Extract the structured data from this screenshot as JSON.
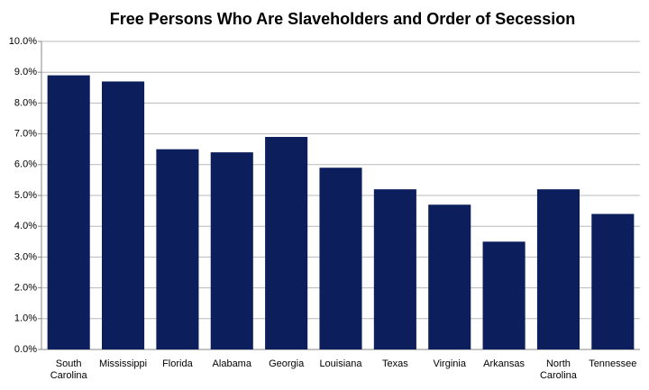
{
  "chart_data": {
    "type": "bar",
    "title": "Free Persons Who Are Slaveholders and Order of Secession",
    "categories": [
      "South Carolina",
      "Mississippi",
      "Florida",
      "Alabama",
      "Georgia",
      "Louisiana",
      "Texas",
      "Virginia",
      "Arkansas",
      "North Carolina",
      "Tennessee"
    ],
    "values": [
      8.9,
      8.7,
      6.5,
      6.4,
      6.9,
      5.9,
      5.2,
      4.7,
      3.5,
      5.2,
      4.4
    ],
    "color": "#0c1f5c",
    "ylim": [
      0,
      10
    ],
    "yticks": [
      {
        "value": 0,
        "label": "0.0%"
      },
      {
        "value": 1,
        "label": "1.0%"
      },
      {
        "value": 2,
        "label": "2.0%"
      },
      {
        "value": 3,
        "label": "3.0%"
      },
      {
        "value": 4,
        "label": "4.0%"
      },
      {
        "value": 5,
        "label": "5.0%"
      },
      {
        "value": 6,
        "label": "6.0%"
      },
      {
        "value": 7,
        "label": "7.0%"
      },
      {
        "value": 8,
        "label": "8.0%"
      },
      {
        "value": 9,
        "label": "9.0%"
      },
      {
        "value": 10,
        "label": "10.0%"
      }
    ],
    "grid": true
  }
}
